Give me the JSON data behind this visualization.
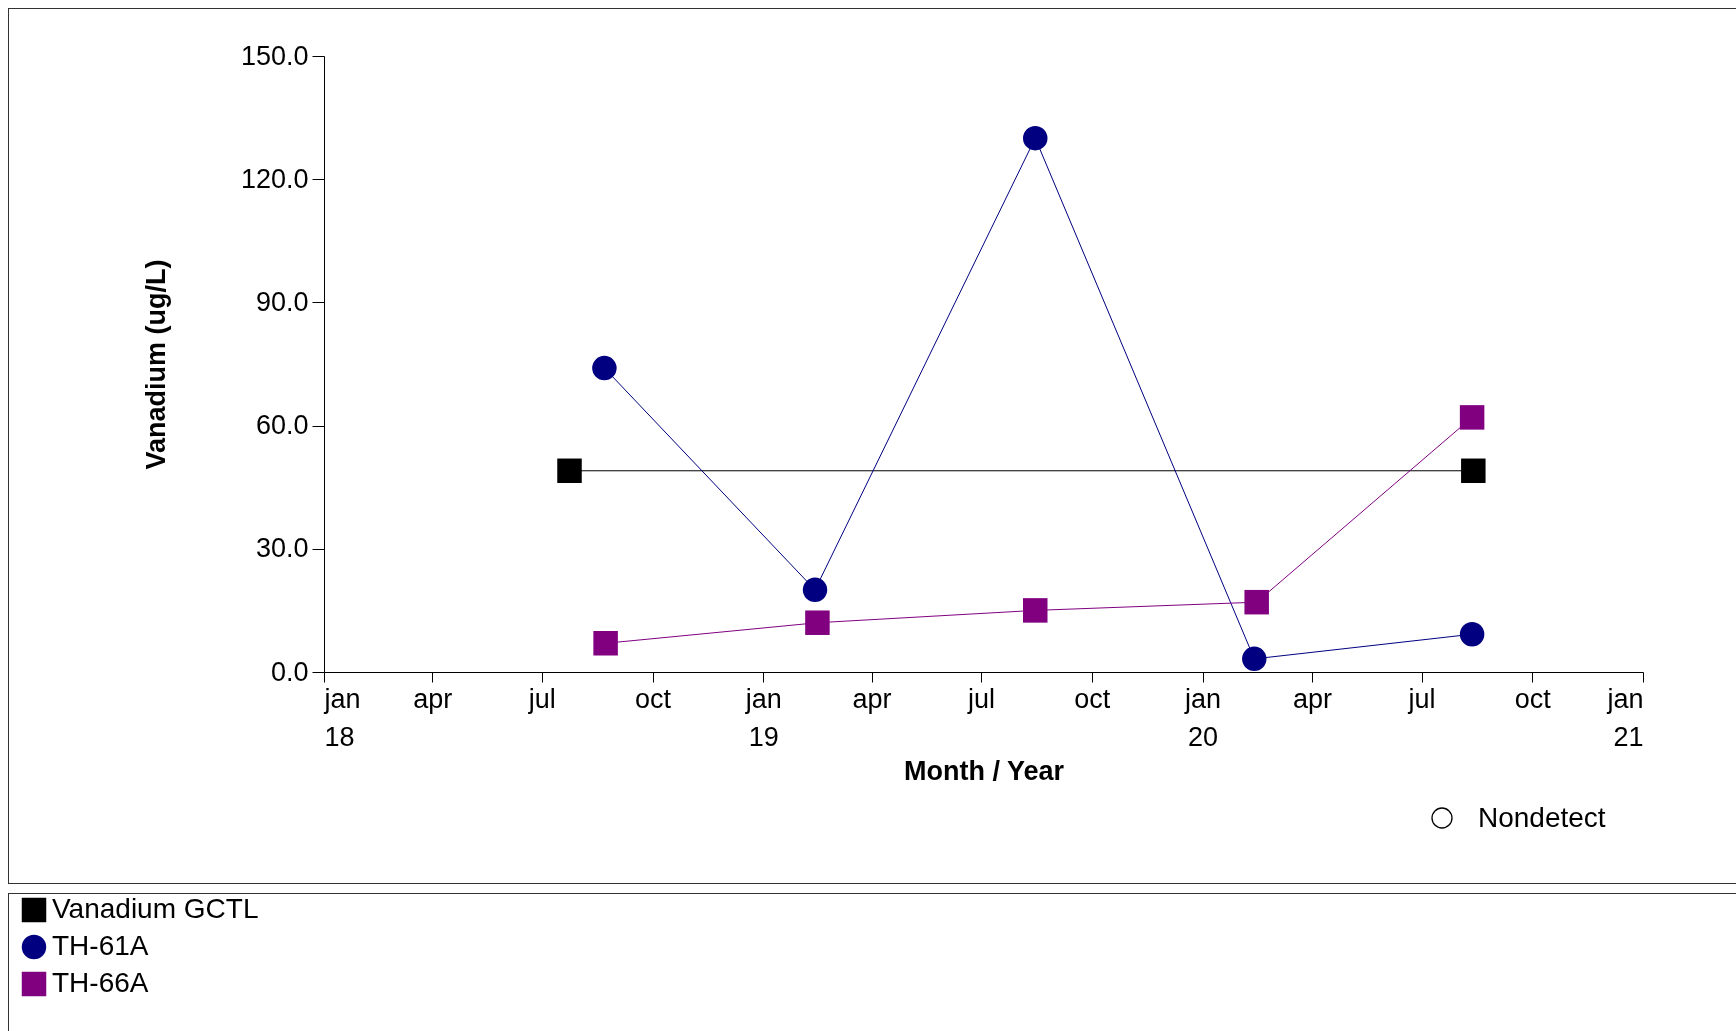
{
  "chart_data": {
    "type": "line",
    "xlabel": "Month / Year",
    "ylabel": "Vanadium (ug/L)",
    "series": [
      {
        "name": "Vanadium GCTL",
        "color": "#000000",
        "marker": "square",
        "x": [
          "2018-07-24",
          "2020-08-13"
        ],
        "values": [
          49,
          49
        ]
      },
      {
        "name": "TH-61A",
        "color": "#000080",
        "marker": "circle",
        "x": [
          "2018-08-22",
          "2019-02-13",
          "2019-08-15",
          "2020-02-13",
          "2020-08-12"
        ],
        "values": [
          74,
          20,
          130,
          3.2,
          9.2
        ]
      },
      {
        "name": "TH-66A",
        "color": "#800080",
        "marker": "square",
        "x": [
          "2018-08-23",
          "2019-02-15",
          "2019-08-15",
          "2020-02-15",
          "2020-08-12"
        ],
        "values": [
          7,
          12,
          15,
          17,
          62
        ]
      }
    ],
    "xlim": [
      "2018-01-01",
      "2021-01-01"
    ],
    "xticks": [
      {
        "value": "2018-01-01",
        "label": "jan\n18"
      },
      {
        "value": "2018-04-01",
        "label": "apr"
      },
      {
        "value": "2018-07-01",
        "label": "jul"
      },
      {
        "value": "2018-10-01",
        "label": "oct"
      },
      {
        "value": "2019-01-01",
        "label": "jan\n19"
      },
      {
        "value": "2019-04-01",
        "label": "apr"
      },
      {
        "value": "2019-07-01",
        "label": "jul"
      },
      {
        "value": "2019-10-01",
        "label": "oct"
      },
      {
        "value": "2020-01-01",
        "label": "jan\n20"
      },
      {
        "value": "2020-04-01",
        "label": "apr"
      },
      {
        "value": "2020-07-01",
        "label": "jul"
      },
      {
        "value": "2020-10-01",
        "label": "oct"
      },
      {
        "value": "2021-01-01",
        "label": "jan\n21"
      }
    ],
    "ylim": [
      0,
      150
    ],
    "yticks": [
      {
        "value": 0,
        "label": "0.0"
      },
      {
        "value": 30,
        "label": "30.0"
      },
      {
        "value": 60,
        "label": "60.0"
      },
      {
        "value": 90,
        "label": "90.0"
      },
      {
        "value": 120,
        "label": "120.0"
      },
      {
        "value": 150,
        "label": "150.0"
      }
    ],
    "annotations": [
      "Nondetect"
    ],
    "legend": "bottom",
    "grid": false,
    "line_style": "solid"
  }
}
